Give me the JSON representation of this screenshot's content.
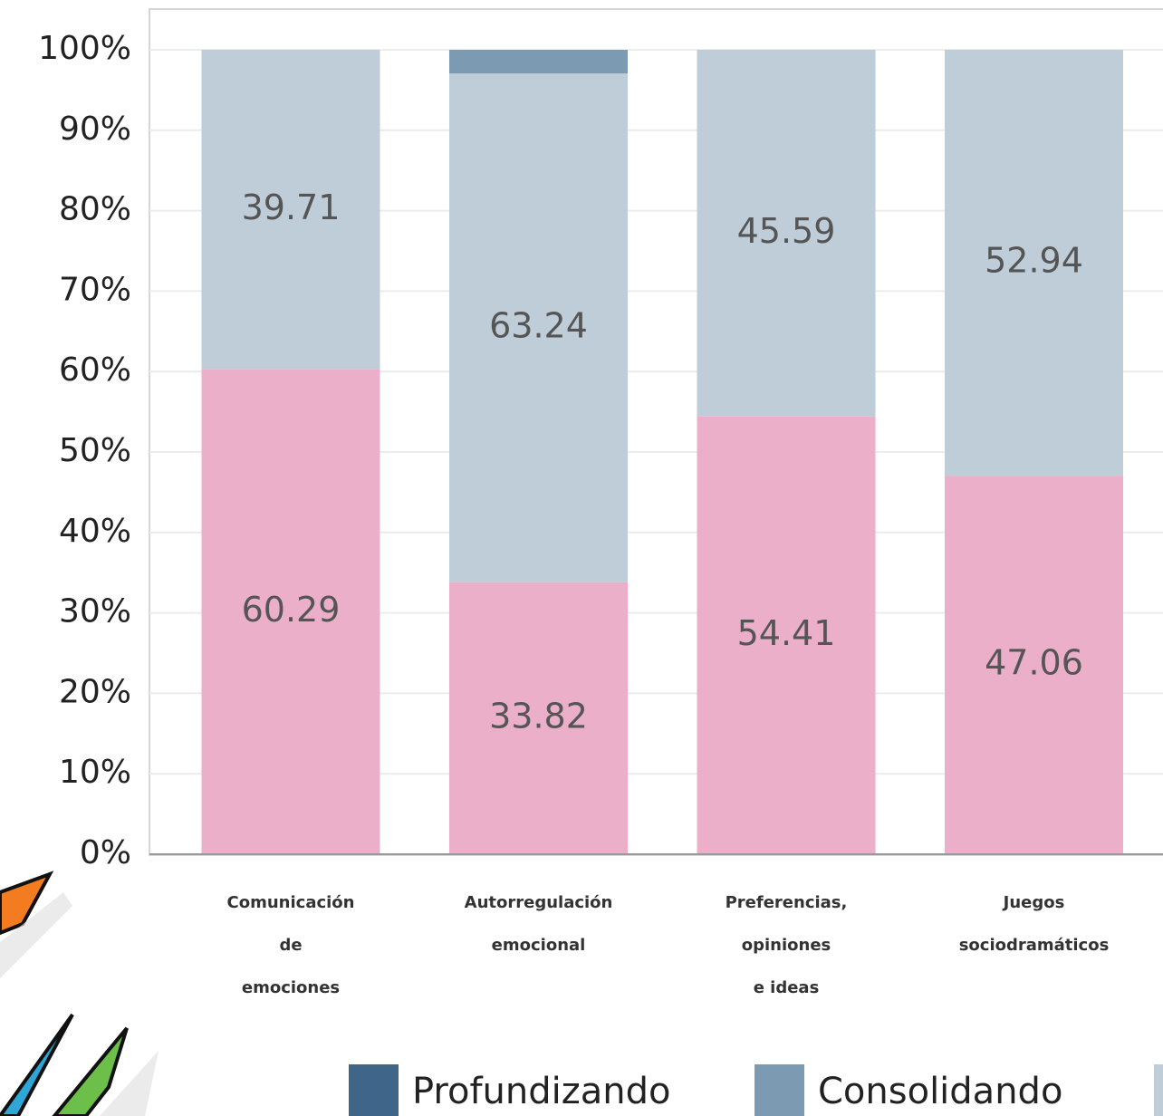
{
  "chart_data": {
    "type": "stacked_bar",
    "categories": [
      [
        "Comunicación",
        "de",
        "emociones"
      ],
      [
        "Autorregulación",
        "emocional"
      ],
      [
        "Preferencias,",
        "opiniones",
        "e ideas"
      ],
      [
        "Juegos",
        "sociodramáticos"
      ]
    ],
    "series": [
      {
        "color": "#ecafc9",
        "values": [
          60.29,
          33.82,
          54.41,
          47.06
        ],
        "labeled": true
      },
      {
        "color": "#bfcdd8",
        "values": [
          39.71,
          63.24,
          45.59,
          52.94
        ],
        "labeled": true
      },
      {
        "name": "Consolidando",
        "color": "#7d9ab3",
        "values": [
          0,
          2.94,
          0,
          0
        ]
      },
      {
        "name": "Profundizando",
        "color": "#3f6689",
        "values": [
          0,
          0,
          0,
          0
        ]
      }
    ],
    "legend_order": [
      3,
      2
    ],
    "ylim": [
      0,
      100
    ],
    "yticks": [
      {
        "value": 0,
        "label": "0%"
      },
      {
        "value": 10,
        "label": "10%"
      },
      {
        "value": 20,
        "label": "20%"
      },
      {
        "value": 30,
        "label": "30%"
      },
      {
        "value": 40,
        "label": "40%"
      },
      {
        "value": 50,
        "label": "50%"
      },
      {
        "value": 60,
        "label": "60%"
      },
      {
        "value": 70,
        "label": "70%"
      },
      {
        "value": 80,
        "label": "80%"
      },
      {
        "value": 90,
        "label": "90%"
      },
      {
        "value": 100,
        "label": "100%"
      }
    ],
    "grid": true
  }
}
